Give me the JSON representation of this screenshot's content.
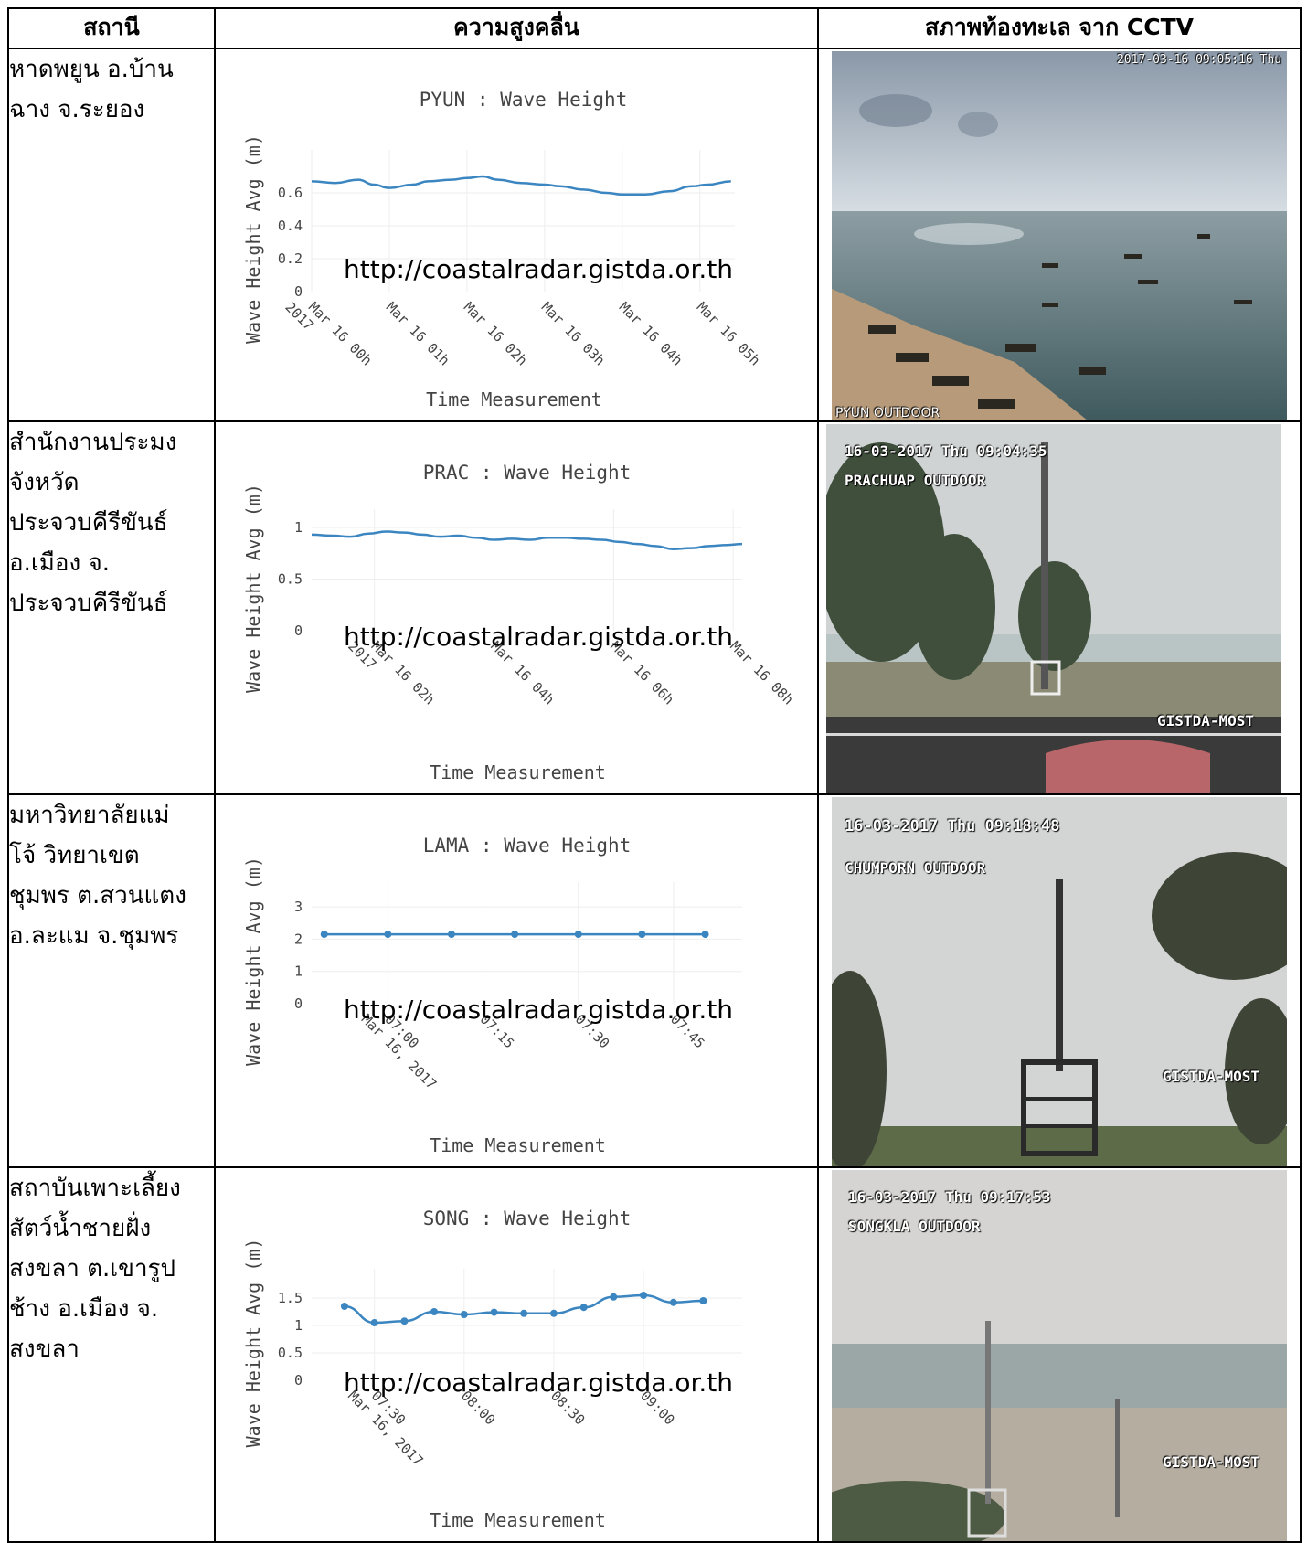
{
  "headers": {
    "station": "สถานี",
    "wave": "ความสูงคลื่น",
    "cctv": "สภาพท้องทะเล จาก CCTV"
  },
  "watermark": "http://coastalradar.gistda.or.th",
  "rows": [
    {
      "station": "หาดพยูน อ.บ้าน\nฉาง จ.ระยอง",
      "cctv": {
        "timestamp": "2017-03-16 09:05:16 Thu",
        "label": "PYUN OUTDOOR",
        "brand": ""
      }
    },
    {
      "station": "สำนักงานประมง\nจังหวัด\nประจวบคีรีขันธ์\nอ.เมือง จ.\nประจวบคีรีขันธ์",
      "cctv": {
        "timestamp": "16-03-2017 Thu 09:04:35",
        "label": "PRACHUAP OUTDOOR",
        "brand": "GISTDA-MOST"
      }
    },
    {
      "station": "มหาวิทยาลัยแม่\nโจ้ วิทยาเขต\nชุมพร ต.สวนแตง\nอ.ละแม จ.ชุมพร",
      "cctv": {
        "timestamp": "16-03-2017 Thu 09:18:48",
        "label": "CHUMPORN OUTDOOR",
        "brand": "GISTDA-MOST"
      }
    },
    {
      "station": "สถาบันเพาะเลี้ยง\nสัตว์น้ำชายฝั่ง\nสงขลา ต.เขารูป\nช้าง อ.เมือง จ.\nสงขลา",
      "cctv": {
        "timestamp": "16-03-2017 Thu 09:17:53",
        "label": "SONGKLA OUTDOOR",
        "brand": "GISTDA-MOST"
      }
    }
  ],
  "chart_data": [
    {
      "type": "line",
      "title": "PYUN : Wave Height",
      "xlabel": "Time Measurement",
      "ylabel": "Wave Height Avg (m)",
      "ylim": [
        0,
        0.75
      ],
      "yticks": [
        0,
        0.2,
        0.4,
        0.6
      ],
      "xlim": [
        0,
        5.45
      ],
      "xticks": [
        {
          "x": 0,
          "label": "Mar 16 00h",
          "sub": "2017"
        },
        {
          "x": 1,
          "label": "Mar 16 01h"
        },
        {
          "x": 2,
          "label": "Mar 16 02h"
        },
        {
          "x": 3,
          "label": "Mar 16 03h"
        },
        {
          "x": 4,
          "label": "Mar 16 04h"
        },
        {
          "x": 5,
          "label": "Mar 16 05h"
        }
      ],
      "markers": false,
      "x": [
        0,
        0.3,
        0.6,
        0.8,
        1.0,
        1.3,
        1.5,
        1.8,
        2.0,
        2.2,
        2.4,
        2.7,
        3.0,
        3.2,
        3.5,
        3.8,
        4.0,
        4.3,
        4.6,
        4.9,
        5.1,
        5.4
      ],
      "y": [
        0.67,
        0.66,
        0.68,
        0.65,
        0.63,
        0.65,
        0.67,
        0.68,
        0.69,
        0.7,
        0.68,
        0.66,
        0.65,
        0.64,
        0.62,
        0.6,
        0.59,
        0.59,
        0.61,
        0.64,
        0.65,
        0.67
      ]
    },
    {
      "type": "line",
      "title": "PRAC : Wave Height",
      "xlabel": "Time Measurement",
      "ylabel": "Wave Height Avg (m)",
      "ylim": [
        0,
        1.0
      ],
      "yticks": [
        0,
        0.5,
        1
      ],
      "xlim": [
        0.95,
        8.15
      ],
      "xticks": [
        {
          "x": 2,
          "label": "Mar 16 02h",
          "sub": "2017"
        },
        {
          "x": 4,
          "label": "Mar 16 04h"
        },
        {
          "x": 6,
          "label": "Mar 16 06h"
        },
        {
          "x": 8,
          "label": "Mar 16 08h"
        }
      ],
      "markers": false,
      "x": [
        0.95,
        1.3,
        1.6,
        1.9,
        2.2,
        2.5,
        2.8,
        3.1,
        3.4,
        3.7,
        4.0,
        4.3,
        4.6,
        4.9,
        5.2,
        5.5,
        5.8,
        6.1,
        6.4,
        6.7,
        7.0,
        7.3,
        7.6,
        7.9,
        8.15
      ],
      "y": [
        0.93,
        0.92,
        0.91,
        0.94,
        0.96,
        0.95,
        0.93,
        0.91,
        0.92,
        0.9,
        0.88,
        0.89,
        0.88,
        0.9,
        0.9,
        0.89,
        0.88,
        0.86,
        0.84,
        0.82,
        0.79,
        0.8,
        0.82,
        0.83,
        0.84
      ]
    },
    {
      "type": "line",
      "title": "LAMA : Wave Height",
      "xlabel": "Time Measurement",
      "ylabel": "Wave Height Avg (m)",
      "ylim": [
        0,
        3.2
      ],
      "yticks": [
        0,
        1,
        2,
        3
      ],
      "xlim": [
        6.8,
        7.93
      ],
      "xticks": [
        {
          "x": 7.0,
          "label": "07:00",
          "sub": "Mar 16, 2017"
        },
        {
          "x": 7.25,
          "label": "07:15"
        },
        {
          "x": 7.5,
          "label": "07:30"
        },
        {
          "x": 7.75,
          "label": "07:45"
        }
      ],
      "markers": true,
      "x": [
        6.833,
        7.0,
        7.167,
        7.333,
        7.5,
        7.667,
        7.833
      ],
      "y": [
        2.15,
        2.15,
        2.15,
        2.15,
        2.15,
        2.15,
        2.15
      ]
    },
    {
      "type": "line",
      "title": "SONG : Wave Height",
      "xlabel": "Time Measurement",
      "ylabel": "Wave Height Avg (m)",
      "ylim": [
        0,
        1.7
      ],
      "yticks": [
        0,
        0.5,
        1,
        1.5
      ],
      "xlim": [
        7.15,
        9.55
      ],
      "xticks": [
        {
          "x": 7.5,
          "label": "07:30",
          "sub": "Mar 16, 2017"
        },
        {
          "x": 8.0,
          "label": "08:00"
        },
        {
          "x": 8.5,
          "label": "08:30"
        },
        {
          "x": 9.0,
          "label": "09:00"
        }
      ],
      "markers": true,
      "x": [
        7.333,
        7.5,
        7.667,
        7.833,
        8.0,
        8.167,
        8.333,
        8.5,
        8.667,
        8.833,
        9.0,
        9.167,
        9.333
      ],
      "y": [
        1.35,
        1.05,
        1.08,
        1.25,
        1.2,
        1.24,
        1.22,
        1.22,
        1.33,
        1.52,
        1.55,
        1.42,
        1.45
      ]
    }
  ]
}
